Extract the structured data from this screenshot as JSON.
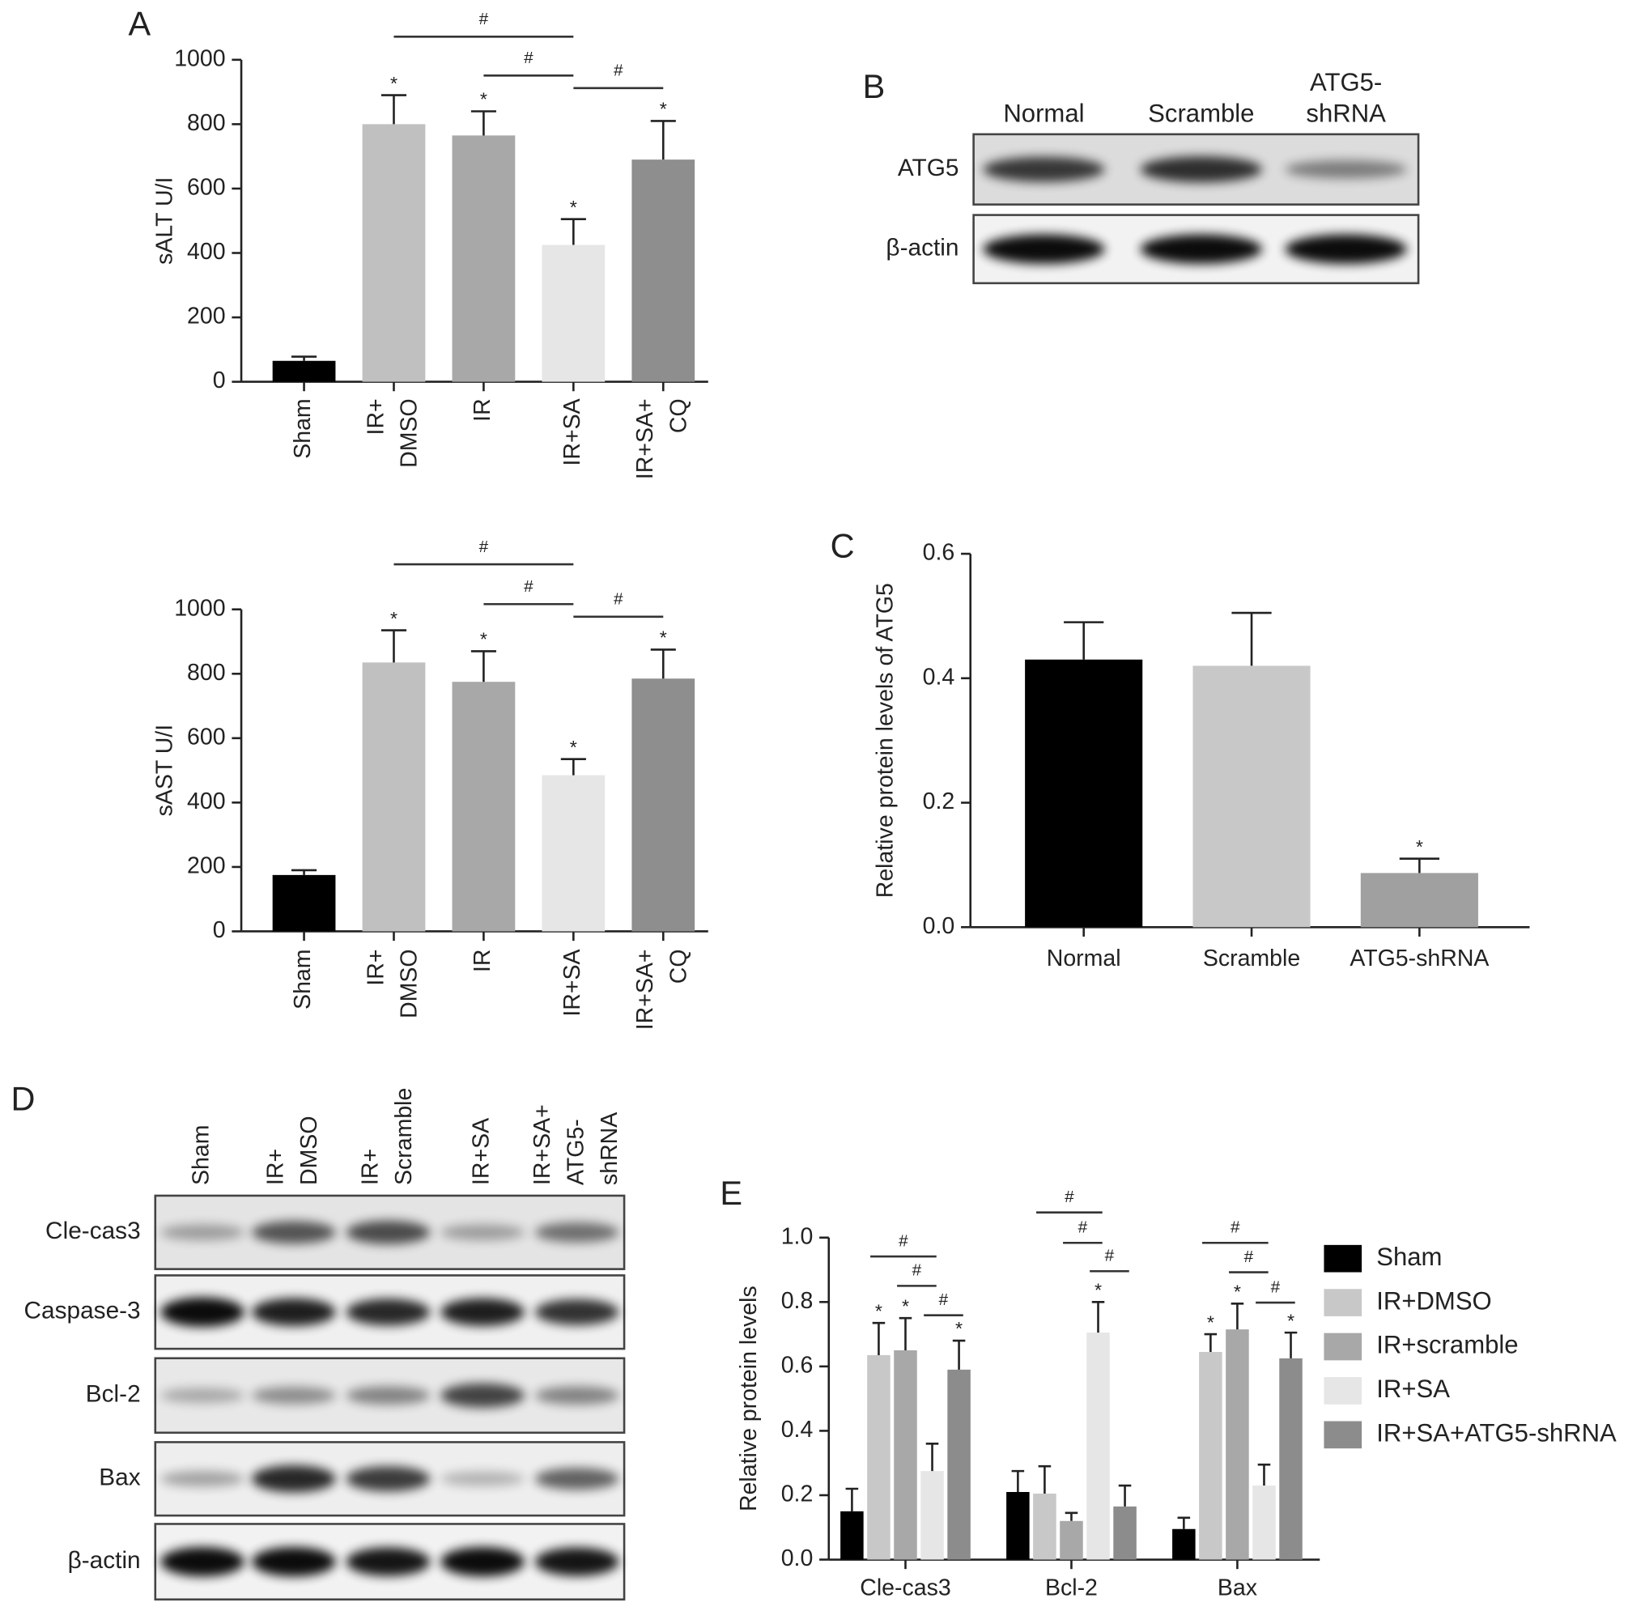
{
  "chart_data": [
    {
      "type": "bar",
      "panel": "A",
      "ylabel": "sALT U/I",
      "categories": [
        [
          "Sham"
        ],
        [
          "IR+",
          "DMSO"
        ],
        [
          "IR"
        ],
        [
          "IR+SA"
        ],
        [
          "IR+SA+",
          "CQ"
        ]
      ],
      "values": [
        65,
        800,
        765,
        425,
        690
      ],
      "errors": [
        13,
        90,
        75,
        80,
        120
      ],
      "colors": [
        "#000000",
        "#c0c0c0",
        "#a8a8a8",
        "#e6e6e6",
        "#8e8e8e"
      ],
      "markers": [
        null,
        "*",
        "*",
        "*",
        "*"
      ],
      "brackets": [
        {
          "label": "#",
          "between": [
            1,
            3
          ]
        },
        {
          "label": "#",
          "between": [
            2,
            3
          ]
        },
        {
          "label": "#",
          "between": [
            3,
            4
          ]
        }
      ],
      "ylim": [
        0,
        1000
      ],
      "yticks": [
        0,
        200,
        400,
        600,
        800,
        1000
      ]
    },
    {
      "type": "bar",
      "ylabel": "sAST U/I",
      "categories": [
        [
          "Sham"
        ],
        [
          "IR+",
          "DMSO"
        ],
        [
          "IR"
        ],
        [
          "IR+SA"
        ],
        [
          "IR+SA+",
          "CQ"
        ]
      ],
      "values": [
        175,
        835,
        775,
        485,
        785
      ],
      "errors": [
        15,
        100,
        95,
        50,
        90
      ],
      "colors": [
        "#000000",
        "#c0c0c0",
        "#a8a8a8",
        "#e6e6e6",
        "#8e8e8e"
      ],
      "markers": [
        null,
        "*",
        "*",
        "*",
        "*"
      ],
      "brackets": [
        {
          "label": "#",
          "between": [
            1,
            3
          ]
        },
        {
          "label": "#",
          "between": [
            2,
            3
          ]
        },
        {
          "label": "#",
          "between": [
            3,
            4
          ]
        }
      ],
      "ylim": [
        0,
        1000
      ],
      "yticks": [
        0,
        200,
        400,
        600,
        800,
        1000
      ]
    },
    {
      "type": "bar",
      "panel": "C",
      "ylabel": "Relative protein levels of ATG5",
      "categories": [
        [
          "Normal"
        ],
        [
          "Scramble"
        ],
        [
          "ATG5-shRNA"
        ]
      ],
      "values": [
        0.43,
        0.42,
        0.087
      ],
      "errors": [
        0.06,
        0.085,
        0.023
      ],
      "colors": [
        "#000000",
        "#c8c8c8",
        "#a0a0a0"
      ],
      "markers": [
        null,
        null,
        "*"
      ],
      "ylim": [
        0,
        0.6
      ],
      "yticks": [
        {
          "value": 0,
          "label": "0.0"
        },
        0.2,
        0.4,
        0.6
      ]
    },
    {
      "type": "grouped-bar",
      "panel": "E",
      "ylabel": "Relative protein levels",
      "categories": [
        [
          "Cle-cas3"
        ],
        [
          "Bcl-2"
        ],
        [
          "Bax"
        ]
      ],
      "series": [
        {
          "name": "Sham",
          "color": "#000000",
          "values": [
            0.15,
            0.21,
            0.095
          ],
          "errors": [
            0.07,
            0.065,
            0.035
          ],
          "markers": [
            null,
            null,
            null
          ]
        },
        {
          "name": "IR+DMSO",
          "color": "#c8c8c8",
          "values": [
            0.635,
            0.205,
            0.645
          ],
          "errors": [
            0.1,
            0.085,
            0.055
          ],
          "markers": [
            "*",
            null,
            "*"
          ]
        },
        {
          "name": "IR+scramble",
          "color": "#a8a8a8",
          "values": [
            0.65,
            0.12,
            0.715
          ],
          "errors": [
            0.1,
            0.025,
            0.08
          ],
          "markers": [
            "*",
            null,
            "*"
          ]
        },
        {
          "name": "IR+SA",
          "color": "#e6e6e6",
          "values": [
            0.275,
            0.705,
            0.23
          ],
          "errors": [
            0.085,
            0.095,
            0.065
          ],
          "markers": [
            null,
            "*",
            null
          ]
        },
        {
          "name": "IR+SA+ATG5-shRNA",
          "color": "#8c8c8c",
          "values": [
            0.59,
            0.165,
            0.625
          ],
          "errors": [
            0.09,
            0.065,
            0.08
          ],
          "markers": [
            "*",
            null,
            "*"
          ]
        }
      ],
      "brackets": [
        {
          "label": "#",
          "category": 0,
          "between": [
            1,
            3
          ]
        },
        {
          "label": "#",
          "category": 0,
          "between": [
            2,
            3
          ]
        },
        {
          "label": "#",
          "category": 0,
          "between": [
            3,
            4
          ]
        },
        {
          "label": "#",
          "category": 1,
          "between": [
            1,
            3
          ]
        },
        {
          "label": "#",
          "category": 1,
          "between": [
            2,
            3
          ]
        },
        {
          "label": "#",
          "category": 1,
          "between": [
            3,
            4
          ]
        },
        {
          "label": "#",
          "category": 2,
          "between": [
            1,
            3
          ]
        },
        {
          "label": "#",
          "category": 2,
          "between": [
            2,
            3
          ]
        },
        {
          "label": "#",
          "category": 2,
          "between": [
            3,
            4
          ]
        }
      ],
      "ylim": [
        0,
        1
      ],
      "yticks": [
        {
          "value": 0,
          "label": "0.0"
        },
        0.2,
        0.4,
        0.6,
        0.8,
        {
          "value": 1,
          "label": "1.0"
        }
      ]
    }
  ],
  "blot_b": {
    "panel": "B",
    "lanes": [
      [
        "Normal"
      ],
      [
        "Scramble"
      ],
      [
        "ATG5-",
        "shRNA"
      ]
    ],
    "rows": [
      "ATG5",
      "β-actin"
    ]
  },
  "blot_d": {
    "panel": "D",
    "lanes": [
      [
        "Sham"
      ],
      [
        "IR+",
        "DMSO"
      ],
      [
        "IR+",
        "Scramble"
      ],
      [
        "IR+SA"
      ],
      [
        "IR+SA+",
        "ATG5-",
        "shRNA"
      ]
    ],
    "rows": [
      "Cle-cas3",
      "Caspase-3",
      "Bcl-2",
      "Bax",
      "β-actin"
    ]
  }
}
